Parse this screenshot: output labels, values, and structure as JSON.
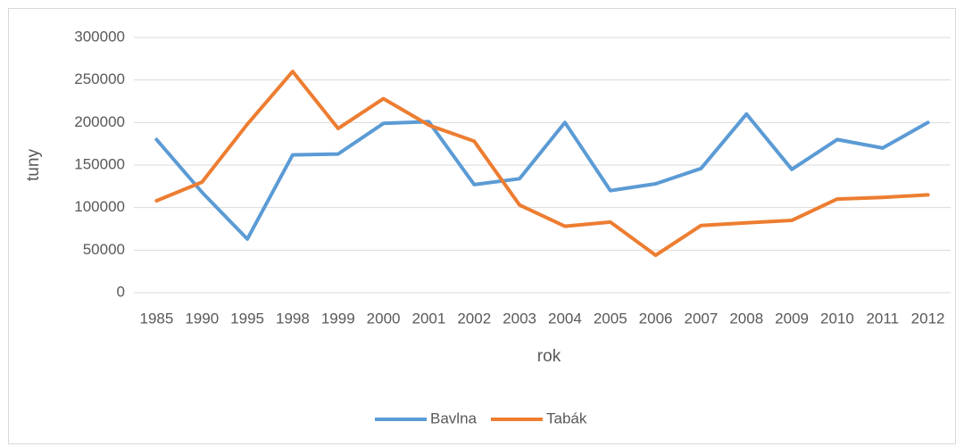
{
  "chart_data": {
    "type": "line",
    "x_label": "rok",
    "y_label": "tuny",
    "categories": [
      "1985",
      "1990",
      "1995",
      "1998",
      "1999",
      "2000",
      "2001",
      "2002",
      "2003",
      "2004",
      "2005",
      "2006",
      "2007",
      "2008",
      "2009",
      "2010",
      "2011",
      "2012"
    ],
    "series": [
      {
        "name": "Bavlna",
        "color": "#5b9bd5",
        "values": [
          180000,
          118000,
          63000,
          162000,
          163000,
          199000,
          201000,
          127000,
          134000,
          200000,
          120000,
          128000,
          146000,
          210000,
          145000,
          180000,
          170000,
          200000
        ]
      },
      {
        "name": "Tabák",
        "color": "#ed7d31",
        "values": [
          108000,
          130000,
          198000,
          260000,
          193000,
          228000,
          197000,
          178000,
          103000,
          78000,
          83000,
          44000,
          79000,
          82000,
          85000,
          110000,
          112000,
          115000
        ]
      }
    ],
    "ylim": [
      0,
      300000
    ],
    "yticks": [
      0,
      50000,
      100000,
      150000,
      200000,
      250000,
      300000
    ],
    "grid": true,
    "legend": "bottom"
  }
}
